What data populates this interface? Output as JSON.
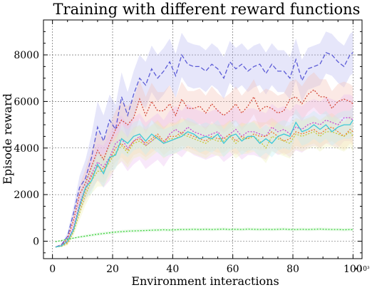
{
  "chart_data": {
    "type": "line",
    "title": "Training with different reward functions",
    "xlabel": "Environment interactions",
    "ylabel": "Episode reward",
    "x_exponent_label": "×10³",
    "xlim": [
      -3,
      103
    ],
    "ylim": [
      -750,
      9500
    ],
    "xticks": [
      0,
      20,
      40,
      60,
      80,
      100
    ],
    "yticks": [
      0,
      2000,
      4000,
      6000,
      8000
    ],
    "grid": true,
    "legend": "none",
    "x": [
      1,
      3,
      5,
      7,
      9,
      11,
      13,
      15,
      17,
      19,
      21,
      23,
      25,
      27,
      29,
      31,
      33,
      35,
      37,
      39,
      41,
      43,
      45,
      47,
      49,
      51,
      53,
      55,
      57,
      59,
      61,
      63,
      65,
      67,
      69,
      71,
      73,
      75,
      77,
      79,
      81,
      83,
      85,
      87,
      89,
      91,
      93,
      95,
      97,
      99,
      100
    ],
    "series": [
      {
        "color": "#5b5bd6",
        "dash": "6 3",
        "band_color": "#b8b8f0",
        "band_halfwidth": [
          0,
          60,
          150,
          300,
          500,
          800,
          1000,
          1100,
          1100,
          1100,
          1050,
          1050,
          1000,
          1000,
          1000,
          1000,
          1000,
          1000,
          1000,
          1000,
          950,
          950,
          950,
          950,
          900,
          900,
          900,
          900,
          900,
          900,
          900,
          900,
          900,
          900,
          900,
          900,
          900,
          900,
          900,
          900,
          900,
          900,
          900,
          900,
          900,
          900,
          900,
          900,
          900,
          900,
          900
        ],
        "values": [
          -250,
          -150,
          200,
          1200,
          2300,
          2700,
          3600,
          4900,
          4300,
          5200,
          4800,
          6200,
          5400,
          6300,
          7000,
          6700,
          7400,
          7000,
          7300,
          7700,
          7100,
          8000,
          7600,
          7500,
          7500,
          7300,
          7600,
          7400,
          7000,
          7700,
          7400,
          7600,
          7300,
          7500,
          7600,
          7200,
          7600,
          7300,
          7300,
          7000,
          7800,
          6900,
          7400,
          7500,
          7600,
          8100,
          8000,
          7700,
          7500,
          8000,
          8100
        ]
      },
      {
        "color": "#d44a3a",
        "dash": "2 2",
        "band_color": "#f4bfb4",
        "band_halfwidth": [
          0,
          50,
          120,
          250,
          400,
          600,
          700,
          800,
          800,
          800,
          800,
          800,
          800,
          800,
          800,
          800,
          800,
          800,
          800,
          800,
          750,
          750,
          750,
          750,
          750,
          750,
          750,
          750,
          750,
          750,
          750,
          750,
          750,
          750,
          750,
          750,
          750,
          750,
          750,
          750,
          750,
          750,
          750,
          750,
          750,
          750,
          750,
          750,
          750,
          750,
          750
        ],
        "values": [
          -250,
          -180,
          100,
          900,
          2000,
          2500,
          3200,
          3900,
          3500,
          4200,
          4800,
          5200,
          5000,
          5300,
          6100,
          5400,
          6000,
          5600,
          5600,
          5900,
          5400,
          6100,
          5700,
          5700,
          5800,
          5500,
          5900,
          5600,
          5400,
          5600,
          5900,
          5500,
          5800,
          6200,
          5600,
          5800,
          5700,
          5500,
          5600,
          6100,
          6200,
          5900,
          6300,
          6500,
          6200,
          6200,
          5700,
          6000,
          6100,
          6000,
          5900
        ]
      },
      {
        "color": "#c948d6",
        "dash": "2 2",
        "band_color": "#ecbef2",
        "band_halfwidth": [
          0,
          40,
          100,
          200,
          350,
          550,
          700,
          800,
          900,
          1000,
          1000,
          1000,
          1000,
          1000,
          1000,
          1000,
          1000,
          1000,
          1000,
          1000,
          1000,
          1000,
          1000,
          1000,
          1000,
          1000,
          1000,
          1000,
          1000,
          1000,
          1000,
          1000,
          1000,
          1000,
          1000,
          1000,
          1000,
          1000,
          1000,
          1000,
          1000,
          1000,
          1000,
          1000,
          1000,
          1000,
          1000,
          1000,
          1000,
          1000,
          1000
        ],
        "values": [
          -250,
          -200,
          0,
          600,
          1600,
          2300,
          2900,
          3400,
          3200,
          3600,
          4200,
          4400,
          4000,
          4300,
          4500,
          4100,
          4300,
          4500,
          4200,
          4600,
          4800,
          4600,
          4900,
          4700,
          4600,
          4500,
          4600,
          4700,
          4400,
          4600,
          4800,
          4500,
          4700,
          4700,
          4600,
          4500,
          4900,
          4700,
          4800,
          4600,
          4900,
          4800,
          5000,
          5100,
          5000,
          5200,
          5100,
          5000,
          5300,
          5300,
          5200
        ]
      },
      {
        "color": "#f07a2a",
        "dash": "2 2",
        "band_color": "#f8d8b8",
        "band_halfwidth": [
          0,
          40,
          90,
          180,
          300,
          450,
          550,
          600,
          600,
          600,
          600,
          600,
          600,
          600,
          600,
          600,
          600,
          600,
          600,
          600,
          600,
          600,
          600,
          600,
          600,
          600,
          600,
          600,
          600,
          600,
          600,
          600,
          600,
          600,
          600,
          600,
          600,
          600,
          600,
          600,
          600,
          600,
          600,
          600,
          600,
          600,
          600,
          600,
          600,
          600,
          600
        ],
        "values": [
          -250,
          -200,
          -50,
          500,
          1400,
          2200,
          2800,
          3200,
          3100,
          3500,
          4000,
          4200,
          3900,
          4300,
          4400,
          4200,
          4400,
          4600,
          4300,
          4500,
          4500,
          4700,
          4600,
          4500,
          4400,
          4300,
          4500,
          4400,
          4400,
          4600,
          4300,
          4500,
          4400,
          4600,
          4500,
          4500,
          4700,
          4500,
          4300,
          4400,
          4700,
          4600,
          4700,
          4800,
          4600,
          4800,
          4900,
          4700,
          4500,
          4800,
          4700
        ]
      },
      {
        "color": "#c8c83a",
        "dash": "2 2",
        "band_color": "#eef2b8",
        "band_halfwidth": [
          0,
          40,
          90,
          180,
          300,
          450,
          550,
          650,
          650,
          650,
          650,
          650,
          650,
          650,
          650,
          650,
          650,
          650,
          650,
          650,
          650,
          650,
          650,
          650,
          650,
          650,
          650,
          650,
          650,
          650,
          650,
          650,
          650,
          650,
          650,
          650,
          650,
          650,
          650,
          650,
          650,
          650,
          650,
          650,
          650,
          650,
          650,
          650,
          650,
          650,
          650
        ],
        "values": [
          -250,
          -220,
          -100,
          400,
          1200,
          2000,
          2600,
          3000,
          3000,
          3400,
          3800,
          4100,
          3800,
          4200,
          4300,
          4100,
          4300,
          4500,
          4200,
          4400,
          4400,
          4600,
          4500,
          4400,
          4300,
          4200,
          4400,
          4300,
          4300,
          4500,
          4200,
          4400,
          4400,
          4500,
          4300,
          4000,
          4500,
          4400,
          4300,
          4200,
          4600,
          4500,
          4600,
          4700,
          4500,
          4700,
          4700,
          4600,
          4500,
          4700,
          4500
        ]
      },
      {
        "color": "#3cc8d8",
        "dash": "",
        "band_color": "#bfeff4",
        "band_halfwidth": [
          0,
          40,
          90,
          180,
          300,
          450,
          550,
          600,
          600,
          600,
          600,
          600,
          600,
          600,
          600,
          600,
          600,
          600,
          600,
          600,
          600,
          600,
          600,
          600,
          600,
          600,
          600,
          600,
          600,
          600,
          600,
          600,
          600,
          600,
          600,
          600,
          600,
          600,
          600,
          600,
          600,
          600,
          600,
          600,
          600,
          600,
          600,
          600,
          600,
          600,
          600
        ],
        "values": [
          -250,
          -200,
          0,
          500,
          1500,
          2300,
          2600,
          3300,
          2900,
          3600,
          3700,
          4400,
          4200,
          4500,
          4600,
          4300,
          4600,
          4400,
          4200,
          4300,
          4400,
          4500,
          4700,
          4600,
          4400,
          4500,
          4400,
          4600,
          4200,
          4500,
          4600,
          4300,
          4500,
          4500,
          4200,
          4400,
          4200,
          4500,
          4600,
          4500,
          5100,
          4700,
          4800,
          5000,
          4800,
          5000,
          4700,
          4900,
          5000,
          5000,
          5200
        ]
      },
      {
        "color": "#3ad23a",
        "dash": "2 2",
        "band_color": "#c6f2c6",
        "band_halfwidth": [
          0,
          20,
          30,
          40,
          50,
          60,
          70,
          70,
          70,
          70,
          70,
          70,
          70,
          70,
          70,
          70,
          70,
          70,
          70,
          70,
          70,
          70,
          70,
          70,
          70,
          70,
          70,
          70,
          70,
          70,
          70,
          70,
          70,
          70,
          70,
          70,
          70,
          70,
          70,
          70,
          70,
          70,
          70,
          70,
          70,
          70,
          70,
          70,
          70,
          70,
          70
        ],
        "values": [
          -20,
          30,
          80,
          130,
          180,
          220,
          260,
          300,
          330,
          360,
          390,
          410,
          430,
          440,
          450,
          460,
          470,
          480,
          490,
          480,
          490,
          500,
          500,
          510,
          500,
          510,
          500,
          510,
          520,
          500,
          510,
          500,
          520,
          510,
          500,
          510,
          500,
          510,
          520,
          500,
          500,
          510,
          500,
          510,
          520,
          510,
          500,
          500,
          490,
          500,
          490
        ]
      }
    ]
  }
}
